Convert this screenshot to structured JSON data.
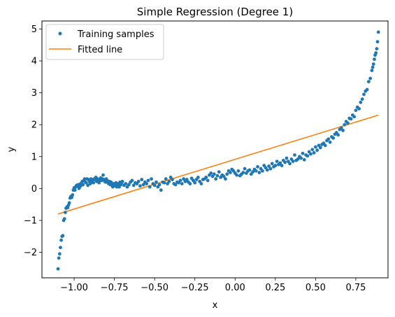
{
  "chart_data": {
    "type": "scatter",
    "title": "Simple Regression (Degree 1)",
    "xlabel": "x",
    "ylabel": "y",
    "xlim": [
      -1.2,
      0.95
    ],
    "ylim": [
      -2.8,
      5.25
    ],
    "grid": false,
    "legend_position": "top-left",
    "x_ticks": [
      -1.0,
      -0.75,
      -0.5,
      -0.25,
      0.0,
      0.25,
      0.5,
      0.75
    ],
    "x_tick_labels": [
      "−1.00",
      "−0.75",
      "−0.50",
      "−0.25",
      "0.00",
      "0.25",
      "0.50",
      "0.75"
    ],
    "y_ticks": [
      -2,
      -1,
      0,
      1,
      2,
      3,
      4,
      5
    ],
    "y_tick_labels": [
      "−2",
      "−1",
      "0",
      "1",
      "2",
      "3",
      "4",
      "5"
    ],
    "series": [
      {
        "name": "Training samples",
        "kind": "scatter",
        "color": "#1f77b4",
        "points": [
          [
            -1.1,
            -2.52
          ],
          [
            -1.095,
            -2.18
          ],
          [
            -1.09,
            -2.05
          ],
          [
            -1.085,
            -1.85
          ],
          [
            -1.08,
            -1.62
          ],
          [
            -1.075,
            -1.5
          ],
          [
            -1.07,
            -1.48
          ],
          [
            -1.065,
            -1.0
          ],
          [
            -1.06,
            -0.95
          ],
          [
            -1.055,
            -0.75
          ],
          [
            -1.05,
            -0.62
          ],
          [
            -1.045,
            -0.58
          ],
          [
            -1.04,
            -0.6
          ],
          [
            -1.035,
            -0.52
          ],
          [
            -1.03,
            -0.45
          ],
          [
            -1.025,
            -0.3
          ],
          [
            -1.02,
            -0.25
          ],
          [
            -1.015,
            -0.28
          ],
          [
            -1.01,
            -0.2
          ],
          [
            -1.005,
            -0.05
          ],
          [
            -1.0,
            0.02
          ],
          [
            -0.995,
            -0.05
          ],
          [
            -0.99,
            0.05
          ],
          [
            -0.985,
            0.1
          ],
          [
            -0.98,
            0.08
          ],
          [
            -0.975,
            0.12
          ],
          [
            -0.97,
            0.0
          ],
          [
            -0.965,
            0.05
          ],
          [
            -0.96,
            0.15
          ],
          [
            -0.955,
            0.1
          ],
          [
            -0.95,
            0.22
          ],
          [
            -0.945,
            0.12
          ],
          [
            -0.94,
            0.25
          ],
          [
            -0.935,
            0.3
          ],
          [
            -0.93,
            0.2
          ],
          [
            -0.925,
            0.18
          ],
          [
            -0.92,
            0.3
          ],
          [
            -0.915,
            0.1
          ],
          [
            -0.91,
            0.28
          ],
          [
            -0.905,
            0.22
          ],
          [
            -0.9,
            0.15
          ],
          [
            -0.895,
            0.3
          ],
          [
            -0.89,
            0.2
          ],
          [
            -0.885,
            0.25
          ],
          [
            -0.88,
            0.18
          ],
          [
            -0.875,
            0.3
          ],
          [
            -0.87,
            0.28
          ],
          [
            -0.865,
            0.35
          ],
          [
            -0.86,
            0.22
          ],
          [
            -0.855,
            0.3
          ],
          [
            -0.85,
            0.25
          ],
          [
            -0.845,
            0.18
          ],
          [
            -0.84,
            0.28
          ],
          [
            -0.835,
            0.33
          ],
          [
            -0.83,
            0.25
          ],
          [
            -0.825,
            0.3
          ],
          [
            -0.82,
            0.42
          ],
          [
            -0.815,
            0.28
          ],
          [
            -0.81,
            0.22
          ],
          [
            -0.805,
            0.2
          ],
          [
            -0.8,
            0.3
          ],
          [
            -0.795,
            0.25
          ],
          [
            -0.79,
            0.18
          ],
          [
            -0.785,
            0.15
          ],
          [
            -0.78,
            0.22
          ],
          [
            -0.775,
            0.12
          ],
          [
            -0.77,
            0.2
          ],
          [
            -0.765,
            0.1
          ],
          [
            -0.76,
            0.05
          ],
          [
            -0.755,
            0.15
          ],
          [
            -0.75,
            0.12
          ],
          [
            -0.745,
            0.08
          ],
          [
            -0.74,
            0.18
          ],
          [
            -0.735,
            0.05
          ],
          [
            -0.73,
            0.1
          ],
          [
            -0.725,
            0.15
          ],
          [
            -0.72,
            0.05
          ],
          [
            -0.715,
            0.2
          ],
          [
            -0.71,
            0.12
          ],
          [
            -0.705,
            0.18
          ],
          [
            -0.7,
            0.22
          ],
          [
            -0.69,
            0.1
          ],
          [
            -0.68,
            0.15
          ],
          [
            -0.67,
            0.05
          ],
          [
            -0.66,
            0.12
          ],
          [
            -0.65,
            0.2
          ],
          [
            -0.64,
            0.25
          ],
          [
            -0.63,
            0.1
          ],
          [
            -0.62,
            0.18
          ],
          [
            -0.61,
            0.15
          ],
          [
            -0.6,
            0.22
          ],
          [
            -0.59,
            0.08
          ],
          [
            -0.58,
            0.28
          ],
          [
            -0.57,
            0.12
          ],
          [
            -0.56,
            0.2
          ],
          [
            -0.55,
            0.15
          ],
          [
            -0.54,
            0.25
          ],
          [
            -0.53,
            0.05
          ],
          [
            -0.52,
            0.3
          ],
          [
            -0.51,
            0.15
          ],
          [
            -0.5,
            0.1
          ],
          [
            -0.49,
            0.2
          ],
          [
            -0.48,
            0.05
          ],
          [
            -0.47,
            0.12
          ],
          [
            -0.46,
            -0.05
          ],
          [
            -0.45,
            0.2
          ],
          [
            -0.44,
            0.18
          ],
          [
            -0.43,
            0.3
          ],
          [
            -0.42,
            0.15
          ],
          [
            -0.41,
            0.22
          ],
          [
            -0.4,
            0.35
          ],
          [
            -0.39,
            0.28
          ],
          [
            -0.38,
            0.15
          ],
          [
            -0.37,
            0.12
          ],
          [
            -0.36,
            0.2
          ],
          [
            -0.35,
            0.18
          ],
          [
            -0.34,
            0.25
          ],
          [
            -0.33,
            0.15
          ],
          [
            -0.32,
            0.3
          ],
          [
            -0.31,
            0.22
          ],
          [
            -0.3,
            0.28
          ],
          [
            -0.29,
            0.2
          ],
          [
            -0.28,
            0.15
          ],
          [
            -0.27,
            0.32
          ],
          [
            -0.26,
            0.25
          ],
          [
            -0.25,
            0.18
          ],
          [
            -0.24,
            0.28
          ],
          [
            -0.23,
            0.35
          ],
          [
            -0.22,
            0.22
          ],
          [
            -0.21,
            0.15
          ],
          [
            -0.2,
            0.28
          ],
          [
            -0.19,
            0.3
          ],
          [
            -0.18,
            0.35
          ],
          [
            -0.17,
            0.25
          ],
          [
            -0.16,
            0.42
          ],
          [
            -0.15,
            0.48
          ],
          [
            -0.14,
            0.38
          ],
          [
            -0.13,
            0.45
          ],
          [
            -0.12,
            0.3
          ],
          [
            -0.11,
            0.4
          ],
          [
            -0.1,
            0.52
          ],
          [
            -0.09,
            0.35
          ],
          [
            -0.08,
            0.42
          ],
          [
            -0.07,
            0.38
          ],
          [
            -0.06,
            0.3
          ],
          [
            -0.05,
            0.45
          ],
          [
            -0.04,
            0.55
          ],
          [
            -0.03,
            0.5
          ],
          [
            -0.02,
            0.6
          ],
          [
            -0.01,
            0.55
          ],
          [
            0.0,
            0.48
          ],
          [
            0.01,
            0.42
          ],
          [
            0.02,
            0.55
          ],
          [
            0.03,
            0.4
          ],
          [
            0.04,
            0.45
          ],
          [
            0.05,
            0.5
          ],
          [
            0.06,
            0.62
          ],
          [
            0.07,
            0.48
          ],
          [
            0.08,
            0.55
          ],
          [
            0.09,
            0.58
          ],
          [
            0.1,
            0.45
          ],
          [
            0.11,
            0.52
          ],
          [
            0.12,
            0.6
          ],
          [
            0.13,
            0.55
          ],
          [
            0.14,
            0.68
          ],
          [
            0.15,
            0.5
          ],
          [
            0.16,
            0.62
          ],
          [
            0.17,
            0.55
          ],
          [
            0.18,
            0.72
          ],
          [
            0.19,
            0.65
          ],
          [
            0.2,
            0.58
          ],
          [
            0.21,
            0.7
          ],
          [
            0.22,
            0.62
          ],
          [
            0.23,
            0.78
          ],
          [
            0.24,
            0.68
          ],
          [
            0.25,
            0.72
          ],
          [
            0.26,
            0.85
          ],
          [
            0.27,
            0.75
          ],
          [
            0.28,
            0.8
          ],
          [
            0.29,
            0.72
          ],
          [
            0.3,
            0.88
          ],
          [
            0.31,
            0.82
          ],
          [
            0.32,
            0.95
          ],
          [
            0.33,
            0.85
          ],
          [
            0.34,
            0.78
          ],
          [
            0.35,
            0.92
          ],
          [
            0.36,
            0.85
          ],
          [
            0.37,
            1.05
          ],
          [
            0.38,
            0.88
          ],
          [
            0.39,
            0.92
          ],
          [
            0.4,
            1.0
          ],
          [
            0.41,
            0.95
          ],
          [
            0.42,
            1.1
          ],
          [
            0.43,
            0.9
          ],
          [
            0.44,
            1.05
          ],
          [
            0.45,
            1.02
          ],
          [
            0.46,
            1.15
          ],
          [
            0.47,
            1.08
          ],
          [
            0.48,
            1.22
          ],
          [
            0.49,
            1.12
          ],
          [
            0.5,
            1.3
          ],
          [
            0.51,
            1.2
          ],
          [
            0.52,
            1.35
          ],
          [
            0.53,
            1.28
          ],
          [
            0.54,
            1.38
          ],
          [
            0.55,
            1.42
          ],
          [
            0.56,
            1.35
          ],
          [
            0.57,
            1.5
          ],
          [
            0.58,
            1.55
          ],
          [
            0.59,
            1.45
          ],
          [
            0.6,
            1.62
          ],
          [
            0.61,
            1.58
          ],
          [
            0.62,
            1.7
          ],
          [
            0.63,
            1.75
          ],
          [
            0.64,
            1.68
          ],
          [
            0.65,
            1.85
          ],
          [
            0.66,
            1.9
          ],
          [
            0.67,
            1.82
          ],
          [
            0.68,
            2.0
          ],
          [
            0.69,
            2.1
          ],
          [
            0.7,
            2.05
          ],
          [
            0.71,
            2.2
          ],
          [
            0.72,
            2.18
          ],
          [
            0.73,
            2.3
          ],
          [
            0.74,
            2.25
          ],
          [
            0.75,
            2.45
          ],
          [
            0.76,
            2.55
          ],
          [
            0.77,
            2.5
          ],
          [
            0.78,
            2.7
          ],
          [
            0.79,
            2.8
          ],
          [
            0.8,
            2.95
          ],
          [
            0.81,
            3.05
          ],
          [
            0.82,
            3.1
          ],
          [
            0.83,
            3.35
          ],
          [
            0.84,
            3.45
          ],
          [
            0.85,
            3.7
          ],
          [
            0.855,
            3.8
          ],
          [
            0.86,
            3.9
          ],
          [
            0.865,
            4.05
          ],
          [
            0.87,
            4.18
          ],
          [
            0.875,
            4.25
          ],
          [
            0.88,
            4.38
          ],
          [
            0.885,
            4.6
          ],
          [
            0.89,
            4.9
          ]
        ]
      },
      {
        "name": "Fitted line",
        "kind": "line",
        "color": "#ff7f0e",
        "points": [
          [
            -1.1,
            -0.8
          ],
          [
            0.89,
            2.3
          ]
        ]
      }
    ]
  }
}
